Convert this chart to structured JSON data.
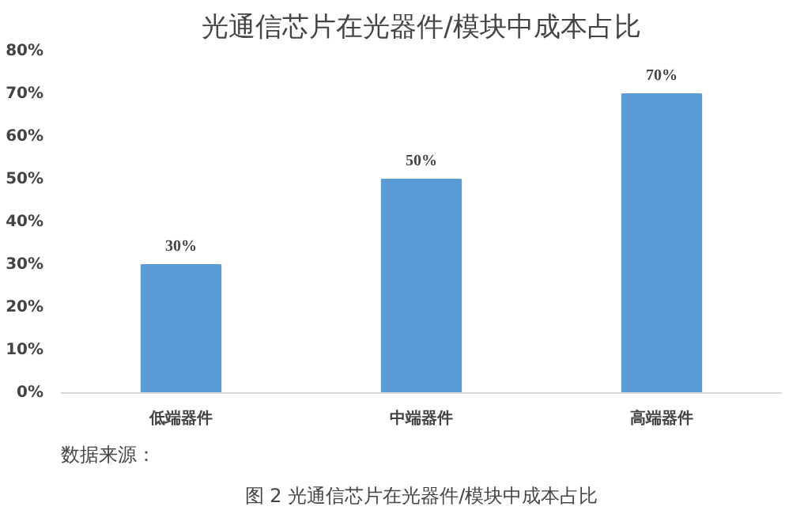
{
  "chart_data": {
    "type": "bar",
    "title": "光通信芯片在光器件/模块中成本占比",
    "categories": [
      "低端器件",
      "中端器件",
      "高端器件"
    ],
    "values": [
      30,
      50,
      70
    ],
    "color": "#5b9bd5",
    "value_labels": [
      "30%",
      "50%",
      "70%"
    ],
    "ylim": [
      0,
      80
    ],
    "yticks": [
      {
        "value": 0,
        "label": "0%"
      },
      {
        "value": 10,
        "label": "10%"
      },
      {
        "value": 20,
        "label": "20%"
      },
      {
        "value": 30,
        "label": "30%"
      },
      {
        "value": 40,
        "label": "40%"
      },
      {
        "value": 50,
        "label": "50%"
      },
      {
        "value": 60,
        "label": "60%"
      },
      {
        "value": 70,
        "label": "70%"
      },
      {
        "value": 80,
        "label": "80%"
      }
    ],
    "grid": false,
    "annotations": [
      "数据来源：",
      "图 2 光通信芯片在光器件/模块中成本占比"
    ]
  }
}
